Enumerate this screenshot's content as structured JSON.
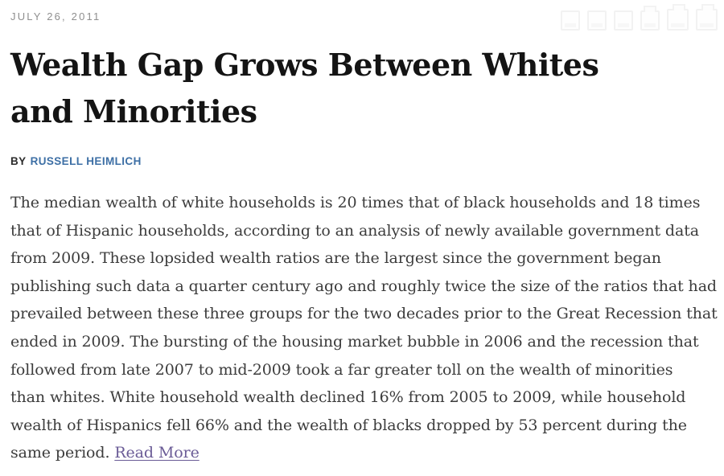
{
  "page": {
    "date": "JULY 26, 2011"
  },
  "share_toolbar": {
    "icons": [
      {
        "name": "faint-share-icon-1"
      },
      {
        "name": "faint-share-icon-2"
      },
      {
        "name": "faint-share-icon-3"
      },
      {
        "name": "faint-share-icon-4"
      },
      {
        "name": "faint-share-icon-5"
      },
      {
        "name": "faint-share-icon-6"
      }
    ]
  },
  "article": {
    "title_lines": [
      "Wealth Gap Grows Between Whites",
      "and Minorities"
    ],
    "byline_prefix": "BY",
    "author": "RUSSELL HEIMLICH",
    "body_lines": [
      "The median wealth of white households is 20 times that of black households and 18 times",
      "that of Hispanic households, according to an analysis of newly available government data",
      "from 2009. These lopsided wealth ratios are the largest since the government began",
      "publishing such data a quarter century ago and roughly twice the size of the ratios that had",
      "prevailed between these three groups for the two decades prior to the Great Recession that",
      "ended in 2009. The bursting of the housing market bubble in 2006 and the recession that",
      "followed from late 2007 to mid-2009 took a far greater toll on the wealth of minorities",
      "than whites. White household wealth declined 16% from 2005 to 2009, while household",
      "wealth of Hispanics fell 66% and the wealth of blacks dropped by 53 percent during the"
    ],
    "last_line_prefix": "same period. ",
    "read_more_label": "Read More"
  },
  "colors": {
    "date_gray": "#8f8f8f",
    "headline_black": "#141414",
    "byline_blue": "#3d6fa5",
    "body_text": "#3c3c3c",
    "read_more_purple": "#6a5b96"
  }
}
